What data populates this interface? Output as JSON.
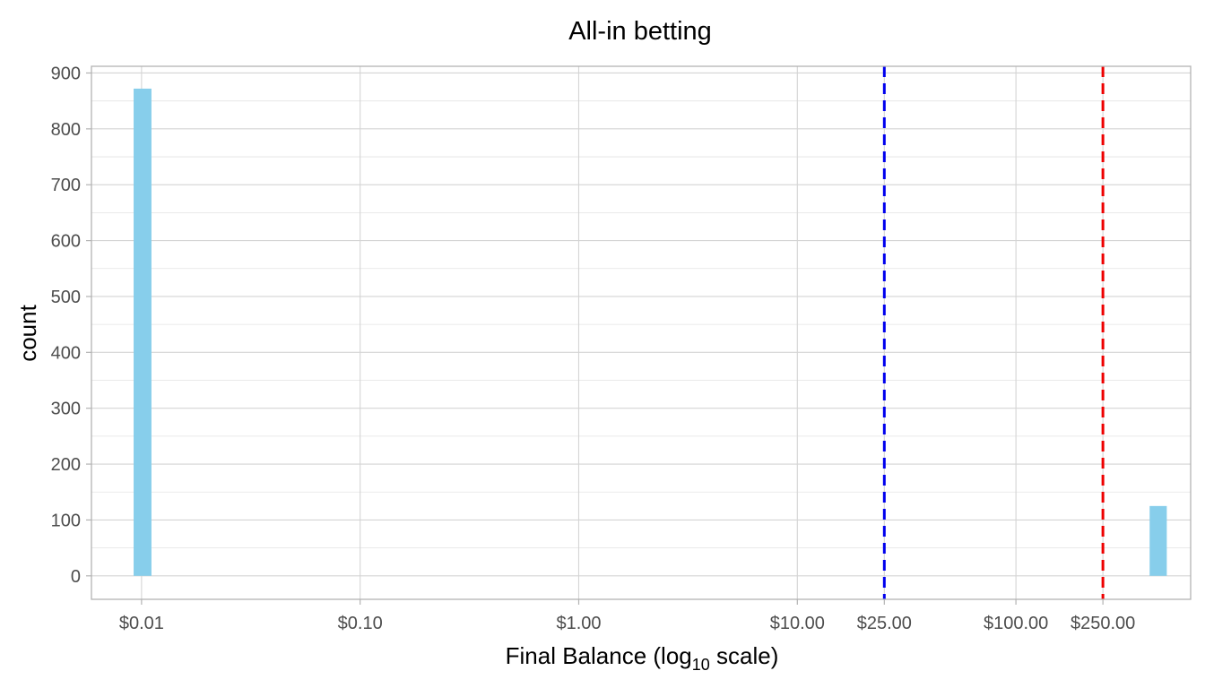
{
  "chart_data": {
    "type": "bar",
    "title": "All-in betting",
    "xlabel_main": "Final Balance (log",
    "xlabel_sub": "10",
    "xlabel_tail": " scale)",
    "ylabel": "count",
    "x_scale": "log10",
    "xlim": [
      0.0059,
      630
    ],
    "ylim": [
      -42,
      912
    ],
    "x_ticks": [
      {
        "value": 0.01,
        "label": "$0.01"
      },
      {
        "value": 0.1,
        "label": "$0.10"
      },
      {
        "value": 1,
        "label": "$1.00"
      },
      {
        "value": 10,
        "label": "$10.00"
      },
      {
        "value": 25,
        "label": "$25.00"
      },
      {
        "value": 100,
        "label": "$100.00"
      },
      {
        "value": 250,
        "label": "$250.00"
      }
    ],
    "y_ticks": [
      {
        "value": 0,
        "label": "0"
      },
      {
        "value": 100,
        "label": "100"
      },
      {
        "value": 200,
        "label": "200"
      },
      {
        "value": 300,
        "label": "300"
      },
      {
        "value": 400,
        "label": "400"
      },
      {
        "value": 500,
        "label": "500"
      },
      {
        "value": 600,
        "label": "600"
      },
      {
        "value": 700,
        "label": "700"
      },
      {
        "value": 800,
        "label": "800"
      },
      {
        "value": 900,
        "label": "900"
      }
    ],
    "bars": [
      {
        "x_min": 0.0092,
        "x_max": 0.0111,
        "count": 872
      },
      {
        "x_min": 409,
        "x_max": 490,
        "count": 125
      }
    ],
    "reference_lines": [
      {
        "x": 25,
        "color": "#0000ee",
        "style": "dashed"
      },
      {
        "x": 250,
        "color": "#ee0000",
        "style": "dashed"
      }
    ],
    "bar_color": "#87ceeb",
    "grid": true
  }
}
